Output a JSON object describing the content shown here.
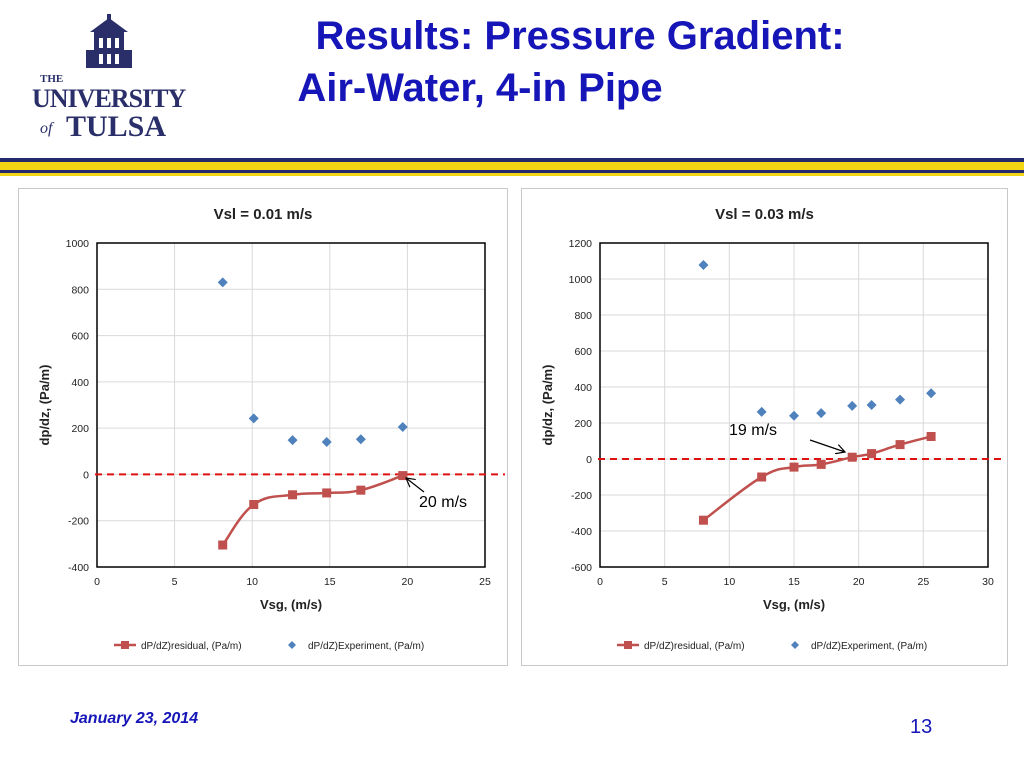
{
  "slide": {
    "title_line1": "Results: Pressure Gradient:",
    "title_line2": "Air-Water, 4-in Pipe",
    "date": "January 23, 2014",
    "page_number": "13",
    "logo": {
      "text_the": "THE",
      "text_university": "UNIVERSITY",
      "text_of": "of",
      "text_tulsa": "TULSA"
    }
  },
  "colors": {
    "title": "#1515b8",
    "navy_bar": "#232a6e",
    "gold_bar": "#f2d616",
    "residual": "#c0504d",
    "experiment": "#4f81bd",
    "zero_line": "#e01010"
  },
  "chart_data": [
    {
      "type": "scatter",
      "title": "Vsl = 0.01 m/s",
      "xlabel": "Vsg, (m/s)",
      "ylabel": "dp/dz, (Pa/m)",
      "xlim": [
        0,
        25
      ],
      "ylim": [
        -400,
        1000
      ],
      "xticks": [
        0,
        5,
        10,
        15,
        20,
        25
      ],
      "yticks": [
        -400,
        -200,
        0,
        200,
        400,
        600,
        800,
        1000
      ],
      "grid": true,
      "legend_position": "bottom",
      "series": [
        {
          "name": "dP/dZ)residual, (Pa/m)",
          "marker": "square",
          "line": "smooth",
          "x": [
            8.1,
            10.1,
            12.6,
            14.8,
            17.0,
            19.7
          ],
          "y": [
            -305,
            -130,
            -88,
            -80,
            -68,
            -5
          ]
        },
        {
          "name": "dP/dZ)Experiment, (Pa/m)",
          "marker": "diamond",
          "line": "none",
          "x": [
            8.1,
            10.1,
            12.6,
            14.8,
            17.0,
            19.7
          ],
          "y": [
            830,
            242,
            148,
            140,
            152,
            205
          ]
        }
      ],
      "reference_line": {
        "y": 0,
        "style": "dashed"
      },
      "annotation": {
        "text": "20 m/s",
        "points_to": {
          "x": 19.7,
          "y": -5
        }
      }
    },
    {
      "type": "scatter",
      "title": "Vsl = 0.03 m/s",
      "xlabel": "Vsg, (m/s)",
      "ylabel": "dp/dz, (Pa/m)",
      "xlim": [
        0,
        30
      ],
      "ylim": [
        -600,
        1200
      ],
      "xticks": [
        0,
        5,
        10,
        15,
        20,
        25,
        30
      ],
      "yticks": [
        -600,
        -400,
        -200,
        0,
        200,
        400,
        600,
        800,
        1000,
        1200
      ],
      "grid": true,
      "legend_position": "bottom",
      "series": [
        {
          "name": "dP/dZ)residual, (Pa/m)",
          "marker": "square",
          "line": "smooth",
          "x": [
            8.0,
            12.5,
            15.0,
            17.1,
            19.5,
            21.0,
            23.2,
            25.6
          ],
          "y": [
            -340,
            -100,
            -45,
            -30,
            10,
            30,
            80,
            125
          ]
        },
        {
          "name": "dP/dZ)Experiment, (Pa/m)",
          "marker": "diamond",
          "line": "none",
          "x": [
            8.0,
            12.5,
            15.0,
            17.1,
            19.5,
            21.0,
            23.2,
            25.6
          ],
          "y": [
            1078,
            262,
            240,
            255,
            295,
            300,
            330,
            365
          ]
        }
      ],
      "reference_line": {
        "y": 0,
        "style": "dashed"
      },
      "annotation": {
        "text": "19 m/s",
        "points_to": {
          "x": 19.5,
          "y": 10
        }
      }
    }
  ]
}
